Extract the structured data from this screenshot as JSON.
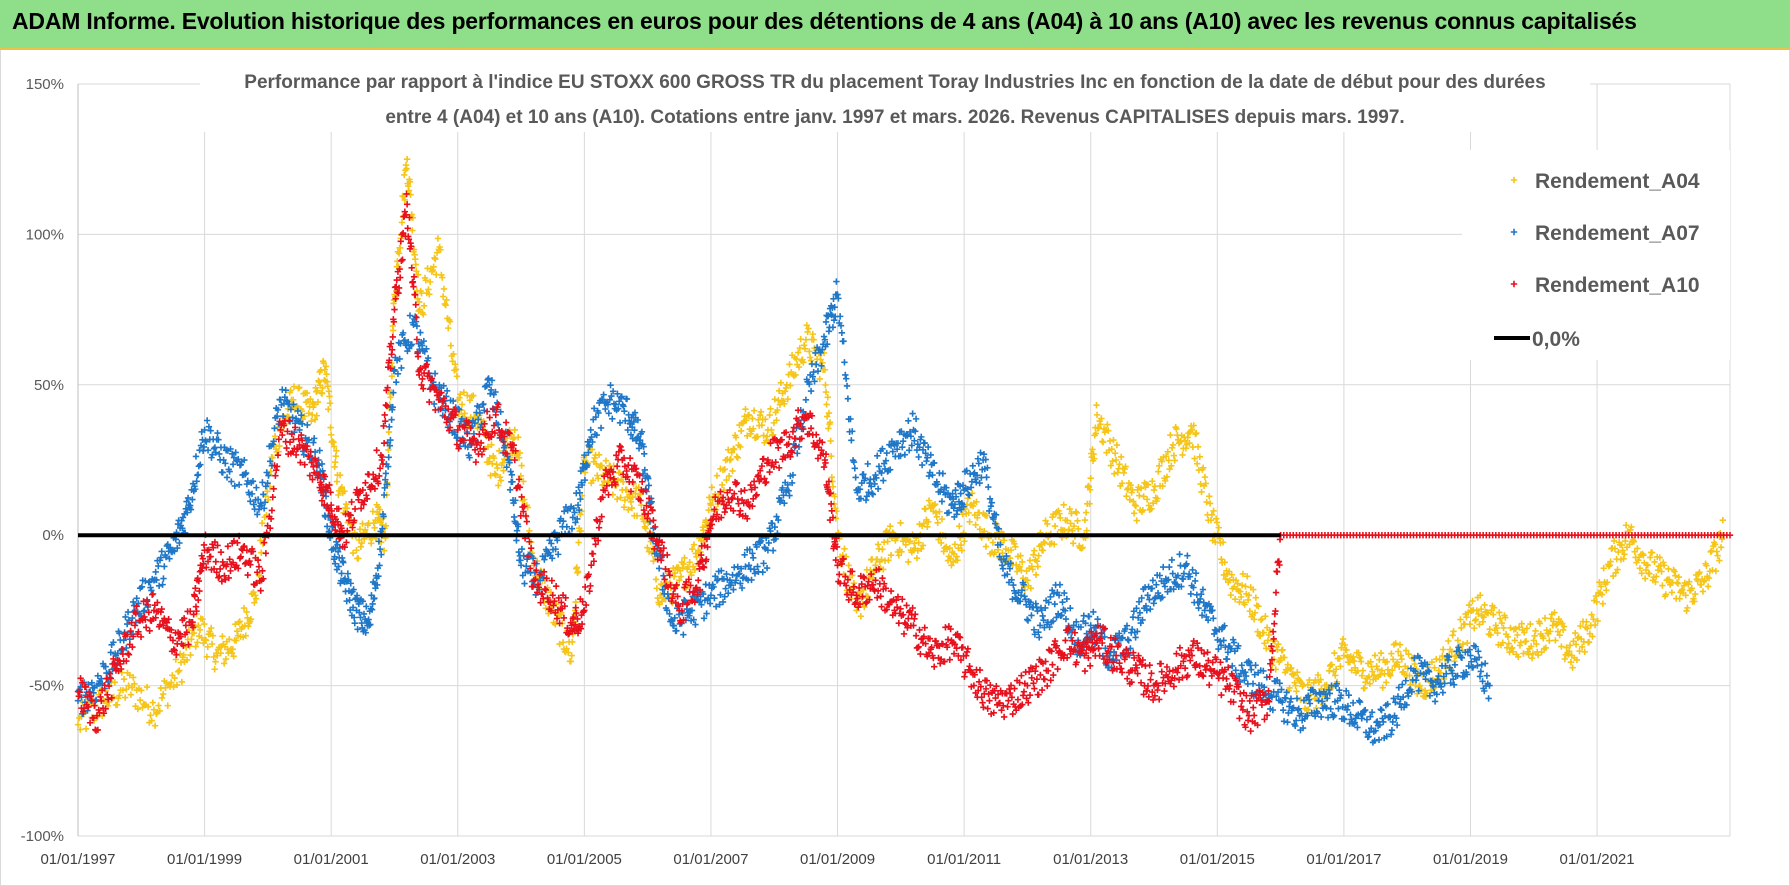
{
  "banner": {
    "title": "ADAM Informe. Evolution historique des performances en euros pour des détentions de 4 ans (A04) à 10 ans (A10) avec les revenus connus capitalisés"
  },
  "colors": {
    "banner_bg": "#8fdf8a",
    "banner_border": "#e7c34a",
    "a04": "#f5c518",
    "a07": "#1f77c8",
    "a10": "#e8101c",
    "zero": "#000000",
    "grid": "#d9d9d9"
  },
  "chart_data": {
    "type": "scatter",
    "title_lines": [
      "Performance par rapport à l'indice EU STOXX 600 GROSS TR  du placement Toray Industries Inc en fonction de la date de début pour des durées",
      "entre 4 (A04) et 10 ans (A10).  Cotations entre janv. 1997 et mars. 2026.  Revenus CAPITALISES depuis mars. 1997."
    ],
    "xlabel": "",
    "ylabel": "",
    "xlim": [
      1997.0,
      2023.1
    ],
    "ylim": [
      -100,
      150
    ],
    "y_ticks": [
      150,
      100,
      50,
      0,
      -50,
      -100
    ],
    "y_tick_labels": [
      "150%",
      "100%",
      "50%",
      "0%",
      "-50%",
      "-100%"
    ],
    "x_ticks": [
      1997,
      1999,
      2001,
      2003,
      2005,
      2007,
      2009,
      2011,
      2013,
      2015,
      2017,
      2019,
      2021
    ],
    "x_tick_labels": [
      "01/01/1997",
      "01/01/1999",
      "01/01/2001",
      "01/01/2003",
      "01/01/2005",
      "01/01/2007",
      "01/01/2009",
      "01/01/2011",
      "01/01/2013",
      "01/01/2015",
      "01/01/2017",
      "01/01/2019",
      "01/01/2021"
    ],
    "gridlines": "horizontal and vertical",
    "legend_position": "top-right",
    "reference_line": {
      "name": "0,0%",
      "value": 0
    },
    "series": [
      {
        "name": "Rendement_A04",
        "marker": "+",
        "x": [
          1997.0,
          1997.4,
          1997.8,
          1998.2,
          1998.6,
          1998.9,
          1999.2,
          1999.5,
          1999.8,
          2000.1,
          2000.4,
          2000.7,
          2000.9,
          2001.1,
          2001.4,
          2001.7,
          2001.85,
          2002.0,
          2002.2,
          2002.4,
          2002.7,
          2003.0,
          2003.3,
          2003.6,
          2003.9,
          2004.2,
          2004.5,
          2004.8,
          2005.0,
          2005.3,
          2005.6,
          2005.9,
          2006.2,
          2006.5,
          2006.8,
          2007.0,
          2007.3,
          2007.6,
          2007.9,
          2008.2,
          2008.5,
          2008.8,
          2009.0,
          2009.3,
          2009.6,
          2009.9,
          2010.2,
          2010.5,
          2010.8,
          2011.1,
          2011.4,
          2011.7,
          2012.0,
          2012.3,
          2012.6,
          2012.9,
          2013.1,
          2013.4,
          2013.7,
          2014.0,
          2014.3,
          2014.6,
          2014.9,
          2015.2,
          2015.5,
          2015.8,
          2016.1,
          2016.4,
          2016.7,
          2017.0,
          2017.3,
          2017.6,
          2017.9,
          2018.2,
          2018.5,
          2018.8,
          2019.1,
          2019.4,
          2019.7,
          2020.0,
          2020.3,
          2020.6,
          2020.9,
          2021.2,
          2021.5,
          2021.8,
          2022.1,
          2022.4,
          2022.7,
          2023.0
        ],
        "y": [
          -63,
          -55,
          -50,
          -58,
          -45,
          -30,
          -40,
          -35,
          -20,
          30,
          45,
          40,
          55,
          20,
          -5,
          5,
          0,
          80,
          125,
          75,
          95,
          45,
          40,
          20,
          35,
          -10,
          -25,
          -40,
          25,
          20,
          15,
          10,
          -20,
          -15,
          -5,
          10,
          25,
          40,
          35,
          50,
          65,
          55,
          0,
          -25,
          -10,
          0,
          -5,
          10,
          -10,
          10,
          0,
          -5,
          -15,
          0,
          5,
          0,
          40,
          25,
          10,
          15,
          30,
          35,
          5,
          -15,
          -20,
          -35,
          -45,
          -55,
          -50,
          -40,
          -45,
          -45,
          -40,
          -50,
          -45,
          -35,
          -25,
          -30,
          -35,
          -35,
          -30,
          -40,
          -30,
          -10,
          0,
          -10,
          -15,
          -20,
          -15,
          0
        ]
      },
      {
        "name": "Rendement_A07",
        "marker": "+",
        "x": [
          1997.0,
          1997.3,
          1997.6,
          1997.9,
          1998.2,
          1998.5,
          1998.75,
          1999.0,
          1999.3,
          1999.6,
          1999.9,
          2000.2,
          2000.5,
          2000.8,
          2001.0,
          2001.2,
          2001.4,
          2001.6,
          2001.8,
          2002.0,
          2002.3,
          2002.6,
          2002.9,
          2003.2,
          2003.5,
          2003.8,
          2004.0,
          2004.3,
          2004.6,
          2004.9,
          2005.1,
          2005.4,
          2005.7,
          2005.9,
          2006.1,
          2006.4,
          2006.7,
          2007.0,
          2007.3,
          2007.6,
          2007.9,
          2008.2,
          2008.5,
          2008.8,
          2009.0,
          2009.3,
          2009.6,
          2009.9,
          2010.2,
          2010.5,
          2010.8,
          2011.0,
          2011.3,
          2011.6,
          2011.9,
          2012.2,
          2012.5,
          2012.8,
          2013.0,
          2013.3,
          2013.6,
          2013.9,
          2014.2,
          2014.5,
          2014.8,
          2015.1,
          2015.4,
          2015.7,
          2016.0,
          2016.3,
          2016.6,
          2016.9,
          2017.2,
          2017.5,
          2017.8,
          2018.1,
          2018.4,
          2018.7,
          2019.0,
          2019.3
        ],
        "y": [
          -55,
          -50,
          -40,
          -25,
          -15,
          -5,
          10,
          35,
          25,
          20,
          10,
          45,
          35,
          25,
          0,
          -15,
          -25,
          -30,
          0,
          55,
          70,
          50,
          40,
          30,
          50,
          25,
          -10,
          -15,
          0,
          10,
          35,
          45,
          40,
          30,
          0,
          -30,
          -25,
          -20,
          -15,
          -10,
          -5,
          15,
          45,
          65,
          80,
          15,
          20,
          30,
          35,
          20,
          10,
          15,
          25,
          -10,
          -20,
          -30,
          -20,
          -35,
          -30,
          -40,
          -35,
          -20,
          -15,
          -10,
          -25,
          -35,
          -45,
          -50,
          -55,
          -60,
          -55,
          -55,
          -60,
          -65,
          -60,
          -45,
          -50,
          -45,
          -40,
          -50
        ]
      },
      {
        "name": "Rendement_A10",
        "marker": "+",
        "x": [
          1997.0,
          1997.3,
          1997.6,
          1997.9,
          1998.2,
          1998.5,
          1998.8,
          1999.0,
          1999.3,
          1999.6,
          1999.9,
          2000.2,
          2000.5,
          2000.8,
          2001.0,
          2001.2,
          2001.5,
          2001.8,
          2002.0,
          2002.2,
          2002.4,
          2002.7,
          2003.0,
          2003.3,
          2003.6,
          2003.9,
          2004.2,
          2004.5,
          2004.8,
          2005.0,
          2005.3,
          2005.6,
          2005.9,
          2006.2,
          2006.5,
          2006.8,
          2007.0,
          2007.3,
          2007.6,
          2007.9,
          2008.2,
          2008.5,
          2008.8,
          2009.0,
          2009.3,
          2009.6,
          2009.9,
          2010.2,
          2010.5,
          2010.8,
          2011.1,
          2011.4,
          2011.7,
          2012.0,
          2012.3,
          2012.6,
          2012.9,
          2013.1,
          2013.4,
          2013.7,
          2014.0,
          2014.3,
          2014.6,
          2014.9,
          2015.2,
          2015.5,
          2015.8,
          2016.0
        ],
        "y": [
          -52,
          -60,
          -45,
          -30,
          -25,
          -35,
          -30,
          -5,
          -10,
          -5,
          -15,
          35,
          30,
          20,
          10,
          0,
          15,
          25,
          75,
          110,
          55,
          45,
          35,
          30,
          40,
          25,
          -15,
          -20,
          -30,
          -25,
          15,
          25,
          15,
          -5,
          -25,
          -15,
          5,
          15,
          10,
          25,
          30,
          40,
          25,
          -10,
          -20,
          -15,
          -25,
          -30,
          -40,
          -35,
          -45,
          -55,
          -55,
          -50,
          -45,
          -35,
          -40,
          -35,
          -40,
          -45,
          -50,
          -45,
          -40,
          -45,
          -50,
          -60,
          -55,
          0
        ]
      }
    ]
  }
}
